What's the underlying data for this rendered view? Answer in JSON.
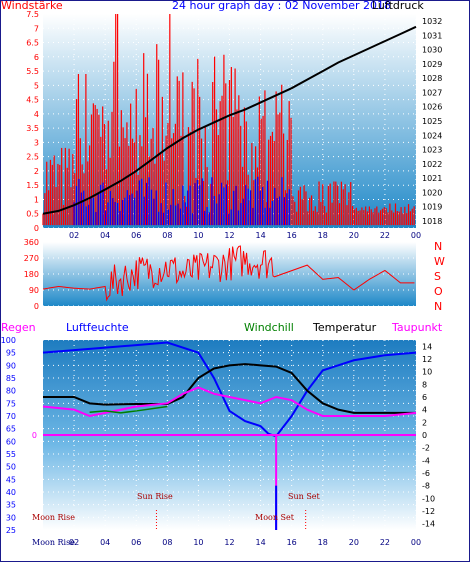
{
  "header": {
    "left_label": "Windstärke",
    "title": "24 hour graph day : 02 November 2018",
    "right_label": "Luftdruck"
  },
  "colors": {
    "wind": "#ff0000",
    "gust_alt": "#0000ff",
    "pressure": "#000000",
    "temperature": "#000000",
    "humidity": "#0000ff",
    "dewpoint": "#ff00ff",
    "windchill": "#008000",
    "rain": "#ff0000",
    "bg_top": "#ffffff",
    "bg_bottom": "#1e88c8"
  },
  "labels": {
    "regen": "Regen",
    "luftfeuchte": "Luftfeuchte",
    "windchill": "Windchill",
    "temperatur": "Temperatur",
    "taupunkt": "Taupunkt"
  },
  "astro": {
    "moon_rise": "Moon Rise",
    "sun_rise": "Sun Rise",
    "moon_set": "Moon Set",
    "sun_set": "Sun Set",
    "axis_prefix": "Moon Rise"
  },
  "chart_data": [
    {
      "type": "line",
      "title": "24 hour graph day : 02 November 2018",
      "x_ticks": [
        "02",
        "04",
        "06",
        "08",
        "10",
        "12",
        "14",
        "16",
        "18",
        "20",
        "22",
        "00"
      ],
      "left_axis": {
        "label": "Windstärke",
        "ticks": [
          "0",
          "0.5",
          "1",
          "1.5",
          "2",
          "2.5",
          "3",
          "3.5",
          "4",
          "4.5",
          "5",
          "5.5",
          "6",
          "6.5",
          "7",
          "7.5"
        ],
        "range": [
          0,
          7.5
        ]
      },
      "right_axis": {
        "label": "Luftdruck",
        "ticks": [
          "1018",
          "1019",
          "1020",
          "1021",
          "1022",
          "1023",
          "1024",
          "1025",
          "1026",
          "1027",
          "1028",
          "1029",
          "1030",
          "1031",
          "1032"
        ],
        "range": [
          1017.5,
          1032.5
        ]
      },
      "series": [
        {
          "name": "Luftdruck",
          "axis": "right",
          "x": [
            0,
            1,
            2,
            3,
            4,
            5,
            6,
            7,
            8,
            9,
            10,
            11,
            12,
            13,
            14,
            15,
            16,
            17,
            18,
            19,
            20,
            21,
            22,
            23,
            24
          ],
          "values": [
            1018.5,
            1018.7,
            1019.1,
            1019.6,
            1020.2,
            1020.8,
            1021.5,
            1022.3,
            1023.1,
            1023.8,
            1024.4,
            1024.9,
            1025.4,
            1025.8,
            1026.3,
            1026.8,
            1027.3,
            1027.9,
            1028.5,
            1029.1,
            1029.6,
            1030.1,
            1030.6,
            1031.1,
            1031.6
          ]
        }
      ]
    },
    {
      "type": "line",
      "title": "",
      "left_axis": {
        "ticks": [
          "0",
          "90",
          "180",
          "270",
          "360"
        ],
        "range": [
          0,
          360
        ]
      },
      "right_axis_labels": [
        "N",
        "W",
        "S",
        "O",
        "N"
      ],
      "series": [
        {
          "name": "",
          "x": [
            0,
            1,
            2,
            3,
            4,
            5,
            6,
            7,
            8,
            9,
            10,
            11,
            12,
            13,
            14,
            15,
            16,
            17,
            18,
            19,
            20,
            21,
            22,
            23,
            24
          ],
          "values": [
            95,
            110,
            100,
            95,
            110,
            150,
            190,
            200,
            220,
            180,
            200,
            230,
            240,
            260,
            250,
            240,
            null,
            230,
            150,
            160,
            90,
            150,
            200,
            130,
            130
          ]
        }
      ]
    },
    {
      "type": "line",
      "title": "",
      "left_axis": {
        "ticks": [
          "25",
          "30",
          "35",
          "40",
          "45",
          "50",
          "55",
          "60",
          "65",
          "70",
          "75",
          "80",
          "85",
          "90",
          "95",
          "100"
        ],
        "range": [
          25,
          100
        ]
      },
      "right_axis": {
        "ticks": [
          "-14",
          "-12",
          "-10",
          "-8",
          "-6",
          "-4",
          "-2",
          "0",
          "2",
          "4",
          "6",
          "8",
          "10",
          "12",
          "14"
        ],
        "range": [
          -15,
          15
        ]
      },
      "rain_zero_label": "0",
      "series": [
        {
          "name": "Luftfeuchte",
          "axis": "left",
          "x": [
            0,
            2,
            4,
            6,
            8,
            10,
            11,
            12,
            13,
            14,
            14.5,
            15,
            16,
            17,
            18,
            19,
            20,
            22,
            24
          ],
          "values": [
            95,
            96,
            97,
            98,
            99,
            95,
            85,
            72,
            68,
            66,
            63,
            62,
            70,
            80,
            88,
            90,
            92,
            94,
            95
          ]
        },
        {
          "name": "Temperatur",
          "axis": "right",
          "x": [
            0,
            2,
            3,
            4,
            6,
            8,
            9,
            10,
            11,
            12,
            13,
            14,
            15,
            16,
            17,
            18,
            19,
            20,
            22,
            24
          ],
          "values": [
            6,
            6,
            5,
            4.8,
            4.9,
            4.9,
            6,
            9,
            10.5,
            11,
            11.2,
            11,
            10.8,
            9.8,
            7,
            5,
            4,
            3.5,
            3.5,
            3.5
          ]
        },
        {
          "name": "Taupunkt",
          "axis": "right",
          "x": [
            0,
            2,
            3,
            4,
            6,
            8,
            9,
            10,
            11,
            12,
            13,
            14,
            15,
            16,
            17,
            18,
            19,
            20,
            22,
            24
          ],
          "values": [
            4.5,
            4,
            3,
            3.5,
            4.5,
            5,
            6.5,
            7.5,
            6.5,
            6,
            5.5,
            5,
            6,
            5.5,
            4,
            3,
            3,
            3,
            3,
            3.5
          ]
        },
        {
          "name": "Windchill",
          "axis": "right",
          "x": [
            3,
            4,
            5,
            6,
            8
          ],
          "values": [
            3.6,
            3.8,
            3.5,
            3.8,
            4.5
          ]
        },
        {
          "name": "Regen",
          "axis": "right",
          "x": [
            0,
            24
          ],
          "values": [
            0,
            0
          ]
        }
      ]
    }
  ]
}
